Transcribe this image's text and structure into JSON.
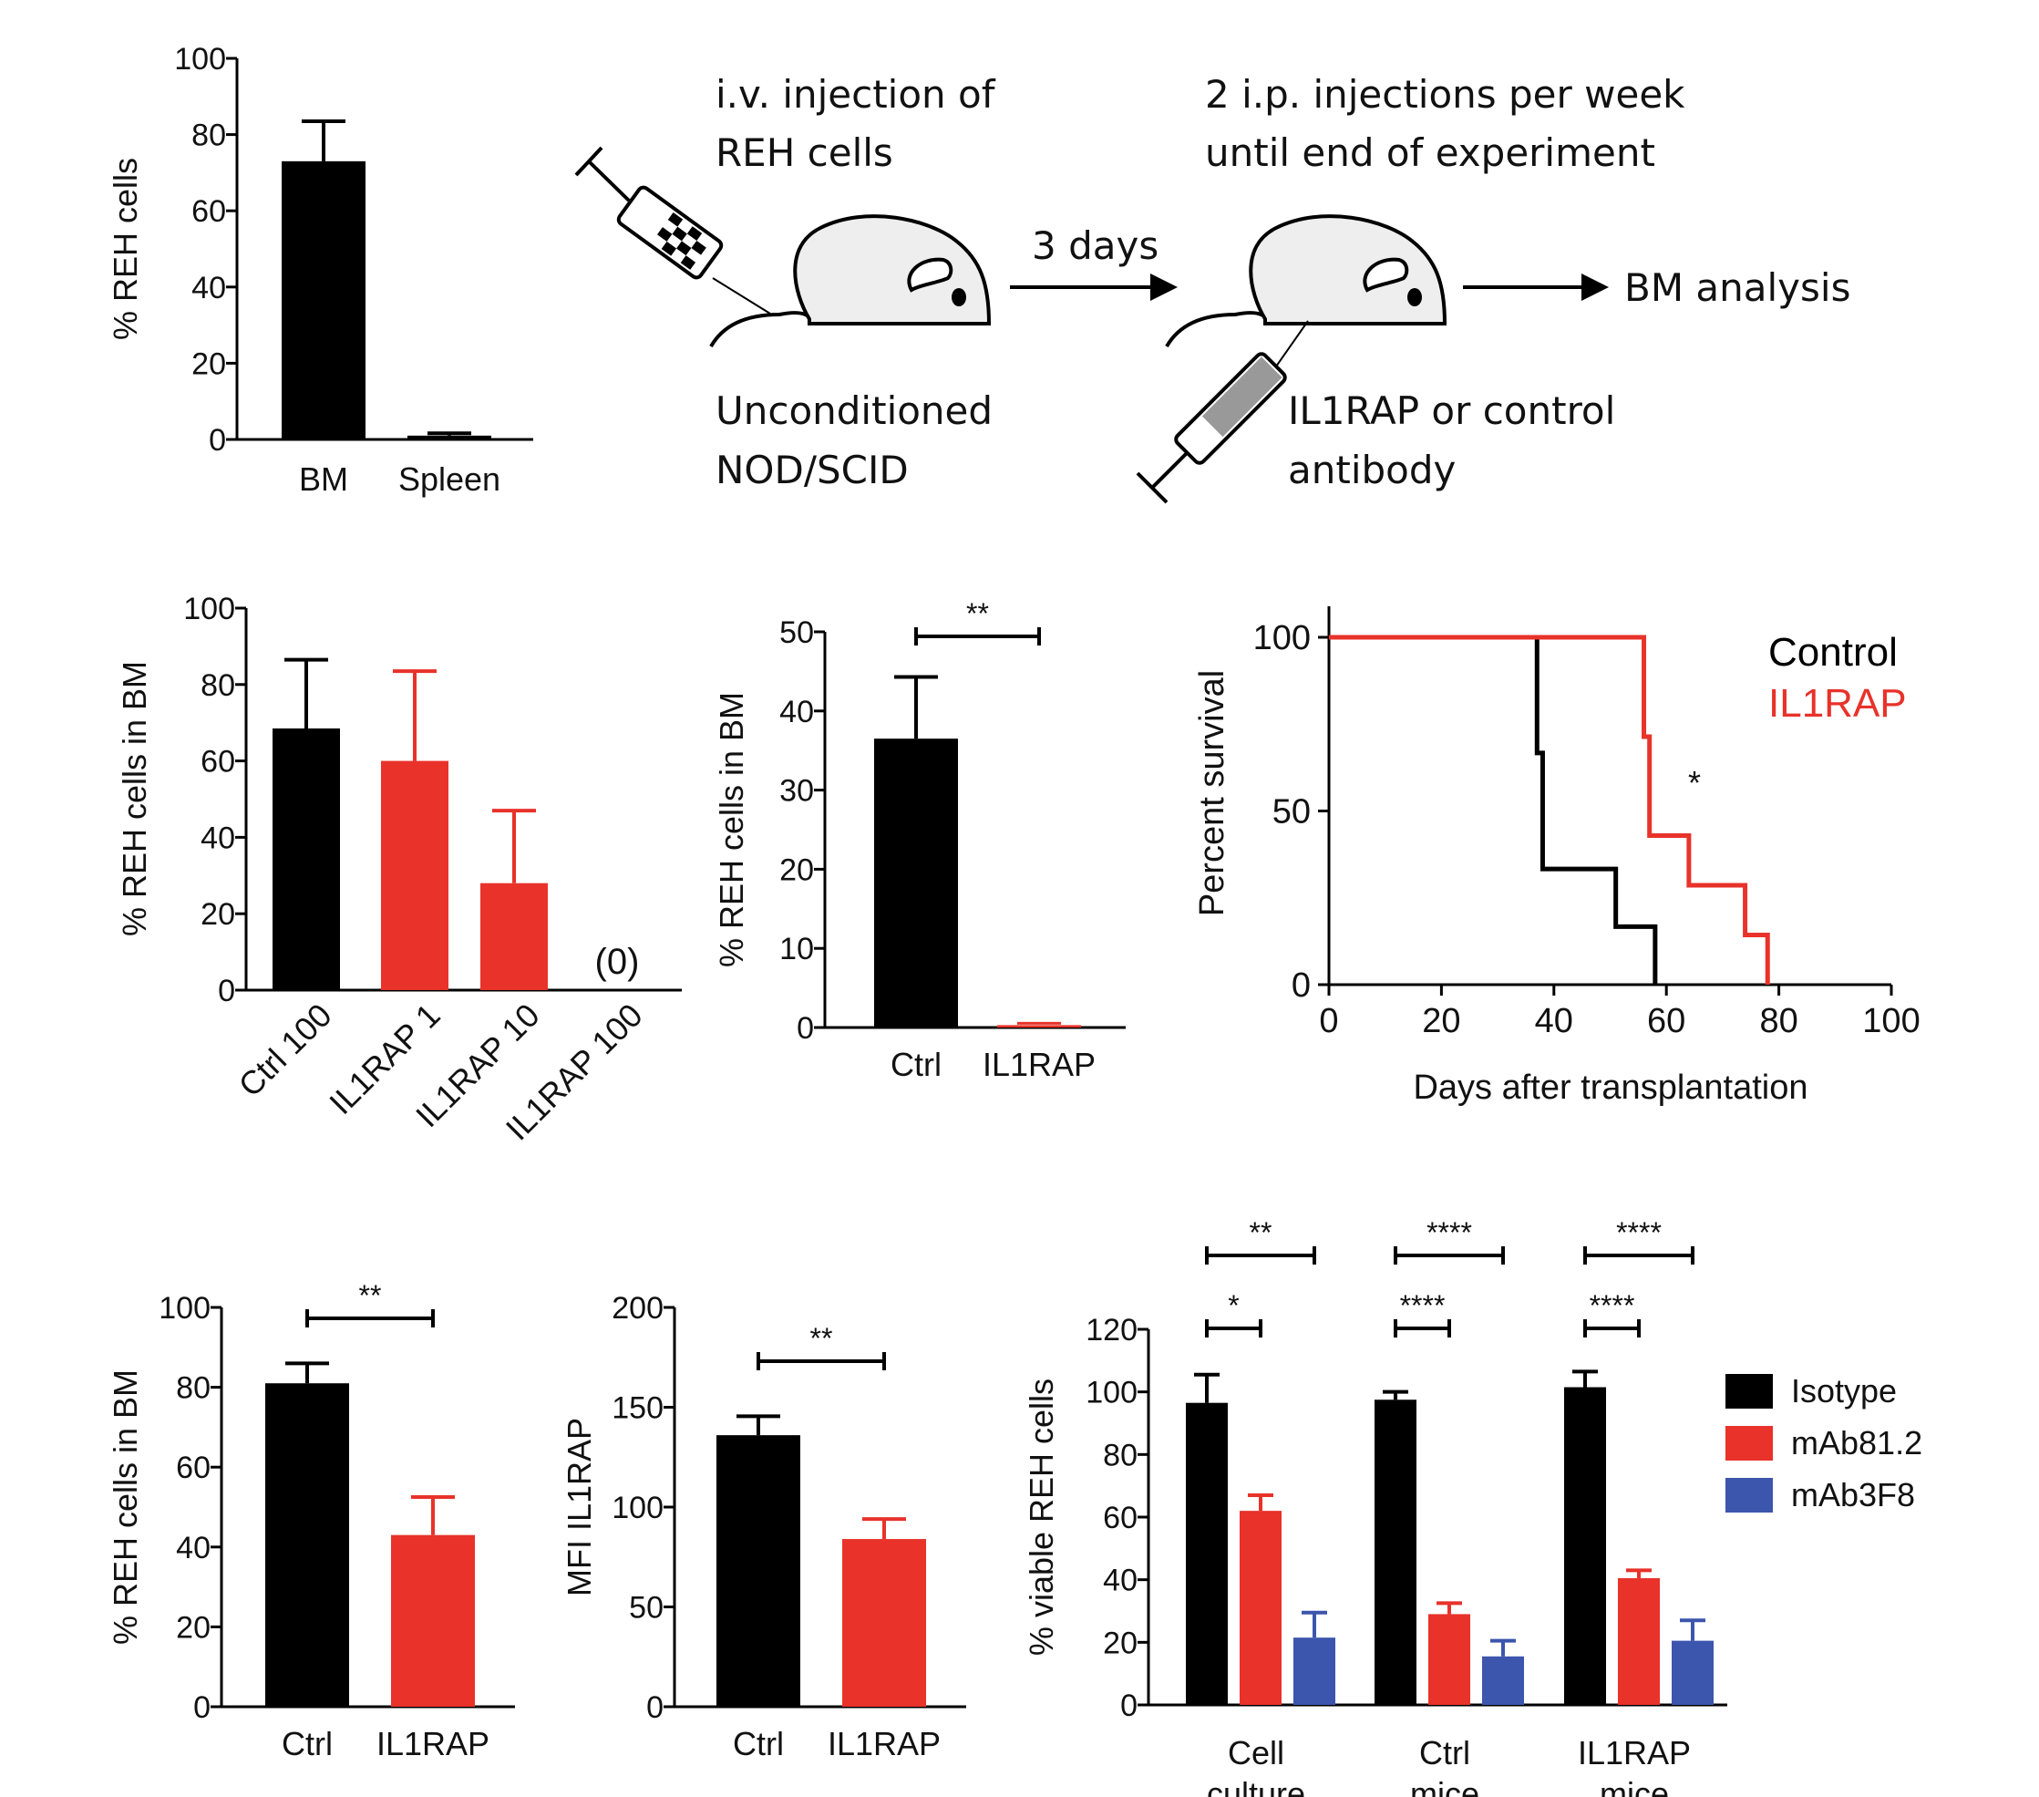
{
  "colors": {
    "black": "#000000",
    "red": "#e8322a",
    "blue": "#3c55ad",
    "mouse_fill": "#eeeeee",
    "syringe_fill": "#999999"
  },
  "schematic": {
    "step1_text": [
      "i.v. injection of",
      "REH cells"
    ],
    "step1_caption": [
      "Unconditioned",
      "NOD/SCID"
    ],
    "interval_label": "3 days",
    "step2_text": [
      "2 i.p. injections per week",
      "until end of experiment"
    ],
    "step2_caption": [
      "IL1RAP or control",
      "antibody"
    ],
    "result_label": "BM analysis",
    "icons": [
      "syringe-icon",
      "mouse-icon",
      "arrow-icon"
    ]
  },
  "chart_data": [
    {
      "id": "engraftment",
      "type": "bar",
      "categories": [
        "BM",
        "Spleen"
      ],
      "values": [
        73,
        1
      ],
      "errors": [
        10.5,
        0.6
      ],
      "colors": [
        "#000000",
        "#000000"
      ],
      "ylabel": "% REH cells",
      "ylim": [
        0,
        100
      ],
      "yticks": [
        0,
        20,
        40,
        60,
        80,
        100
      ],
      "annotations": [],
      "legend": "none"
    },
    {
      "id": "dose_response",
      "type": "bar",
      "categories": [
        "Ctrl 100",
        "IL1RAP 1",
        "IL1RAP 10",
        "IL1RAP 100"
      ],
      "values": [
        68.5,
        60,
        28,
        0
      ],
      "errors": [
        18,
        23.5,
        19,
        0
      ],
      "colors": [
        "#000000",
        "#e8322a",
        "#e8322a",
        "#e8322a"
      ],
      "value_labels": [
        "",
        "",
        "",
        "(0)"
      ],
      "ylabel": "% REH cells in BM",
      "ylim": [
        0,
        100
      ],
      "yticks": [
        0,
        20,
        40,
        60,
        80,
        100
      ],
      "rotated_xlabels": true,
      "legend": "none"
    },
    {
      "id": "bm_ctrl_vs_il1rap_a",
      "type": "bar",
      "categories": [
        "Ctrl",
        "IL1RAP"
      ],
      "values": [
        36.5,
        0.3
      ],
      "errors": [
        7.8,
        0
      ],
      "colors": [
        "#000000",
        "#e8322a"
      ],
      "ylabel": "% REH cells in BM",
      "ylim": [
        0,
        50
      ],
      "yticks": [
        0,
        10,
        20,
        30,
        40,
        50
      ],
      "significance": [
        {
          "from": 0,
          "to": 1,
          "label": "**"
        }
      ],
      "legend": "none"
    },
    {
      "id": "survival",
      "type": "line",
      "step": true,
      "xlabel": "Days after transplantation",
      "ylabel": "Percent survival",
      "xlim": [
        0,
        100
      ],
      "ylim": [
        0,
        100
      ],
      "xticks": [
        0,
        20,
        40,
        60,
        80,
        100
      ],
      "yticks": [
        0,
        50,
        100
      ],
      "series": [
        {
          "name": "Control",
          "color": "#000000",
          "x": [
            0,
            37,
            38,
            51,
            58
          ],
          "y": [
            100,
            66.7,
            33.3,
            16.7,
            0
          ]
        },
        {
          "name": "IL1RAP",
          "color": "#e8322a",
          "x": [
            0,
            56,
            57,
            64,
            74,
            78
          ],
          "y": [
            100,
            71.4,
            42.9,
            28.6,
            14.3,
            0
          ]
        }
      ],
      "annotations": [
        {
          "text": "*",
          "x": 65,
          "y": 58
        }
      ],
      "legend": "top-right"
    },
    {
      "id": "bm_ctrl_vs_il1rap_b",
      "type": "bar",
      "categories": [
        "Ctrl",
        "IL1RAP"
      ],
      "values": [
        81,
        43
      ],
      "errors": [
        5,
        9.5
      ],
      "colors": [
        "#000000",
        "#e8322a"
      ],
      "ylabel": "% REH cells in BM",
      "ylim": [
        0,
        100
      ],
      "yticks": [
        0,
        20,
        40,
        60,
        80,
        100
      ],
      "significance": [
        {
          "from": 0,
          "to": 1,
          "label": "**"
        }
      ],
      "legend": "none"
    },
    {
      "id": "mfi",
      "type": "bar",
      "categories": [
        "Ctrl",
        "IL1RAP"
      ],
      "values": [
        136,
        84
      ],
      "errors": [
        9.5,
        10
      ],
      "colors": [
        "#000000",
        "#e8322a"
      ],
      "ylabel": "MFI IL1RAP",
      "ylim": [
        0,
        200
      ],
      "yticks": [
        0,
        50,
        100,
        150,
        200
      ],
      "significance": [
        {
          "from": 0,
          "to": 1,
          "label": "**"
        }
      ],
      "legend": "none"
    },
    {
      "id": "viability",
      "type": "bar",
      "grouped": true,
      "categories": [
        [
          "Cell",
          "culture"
        ],
        [
          "Ctrl",
          "mice"
        ],
        [
          "IL1RAP",
          "mice"
        ]
      ],
      "series": [
        {
          "name": "Isotype",
          "color": "#000000",
          "values": [
            96.5,
            97.5,
            101.5
          ],
          "errors": [
            9,
            2.5,
            5
          ]
        },
        {
          "name": "mAb81.2",
          "color": "#e8322a",
          "values": [
            62,
            29,
            40.5
          ],
          "errors": [
            5,
            3.5,
            2.5
          ]
        },
        {
          "name": "mAb3F8",
          "color": "#3c55ad",
          "values": [
            21.5,
            15.5,
            20.5
          ],
          "errors": [
            8,
            5,
            6.5
          ]
        }
      ],
      "ylabel": "% viable REH cells",
      "ylim": [
        0,
        120
      ],
      "yticks": [
        0,
        20,
        40,
        60,
        80,
        100,
        120
      ],
      "significance": [
        {
          "group": 0,
          "from": 0,
          "to": 2,
          "label": "**"
        },
        {
          "group": 0,
          "from": 0,
          "to": 1,
          "label": "*"
        },
        {
          "group": 1,
          "from": 0,
          "to": 2,
          "label": "****"
        },
        {
          "group": 1,
          "from": 0,
          "to": 1,
          "label": "****"
        },
        {
          "group": 2,
          "from": 0,
          "to": 2,
          "label": "****"
        },
        {
          "group": 2,
          "from": 0,
          "to": 1,
          "label": "****"
        }
      ],
      "legend": "right"
    }
  ]
}
